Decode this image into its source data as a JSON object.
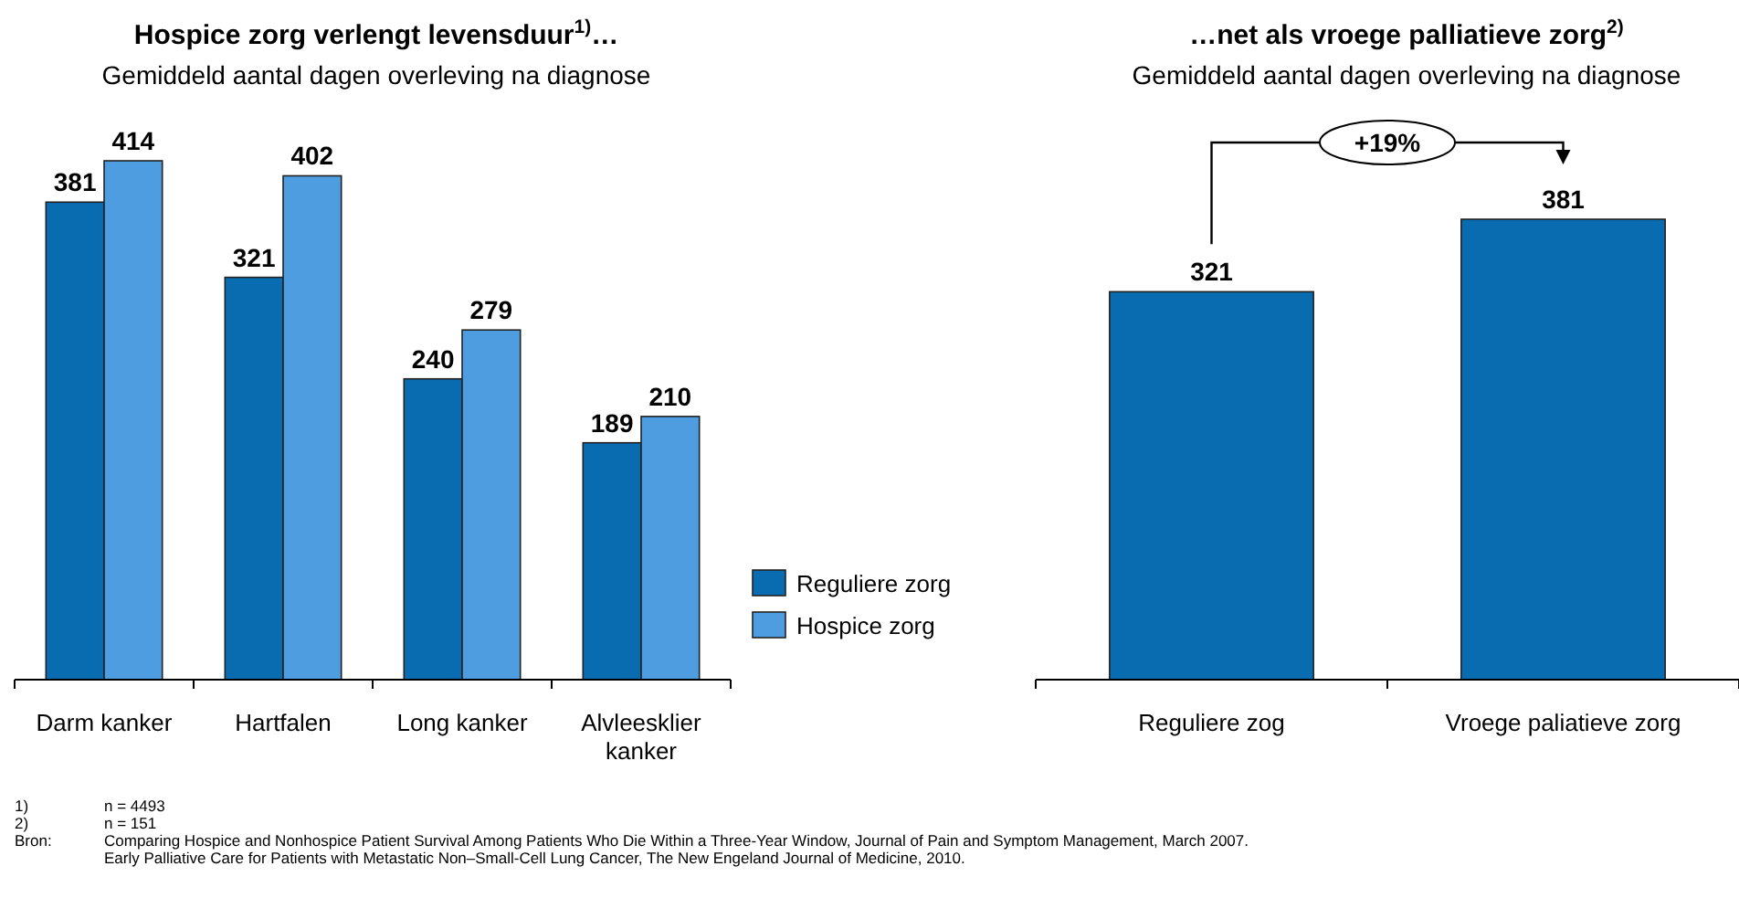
{
  "chart_data": [
    {
      "type": "bar",
      "title": "Hospice zorg verlengt levensduur$^{1)}$…",
      "subtitle": "Gemiddeld aantal dagen overleving na diagnose",
      "categories": [
        "Darm kanker",
        "Hartfalen",
        "Long kanker",
        "Alvleesklier kanker"
      ],
      "series": [
        {
          "name": "Reguliere zorg",
          "color": "#0a6cb0",
          "values": [
            381,
            321,
            240,
            189
          ]
        },
        {
          "name": "Hospice zorg",
          "color": "#4d9de0",
          "values": [
            414,
            402,
            279,
            210
          ]
        }
      ],
      "data_labels": true,
      "legend": "right",
      "grid": false,
      "annotations": [
        "1) n = 4493",
        "2) n = 151",
        "Bron: Comparing Hospice and Nonhospice Patient Survival Among Patients Who Die Within a Three-Year Window, Journal of Pain and Symptom Management, March 2007.\nEarly Palliative Care for Patients with Metastatic Non–Small-Cell Lung Cancer, The New Engeland Journal of Medicine, 2010."
      ]
    },
    {
      "type": "bar",
      "title": "…net als vroege palliatieve zorg$^{2)}$",
      "subtitle": "Gemiddeld aantal dagen overleving na diagnose",
      "categories": [
        "Reguliere zog",
        "Vroege paliatieve zorg"
      ],
      "values": [
        321,
        381
      ],
      "color": "#0a6cb0",
      "data_labels": true,
      "grid": false,
      "annotations": [
        "+19%"
      ]
    }
  ]
}
